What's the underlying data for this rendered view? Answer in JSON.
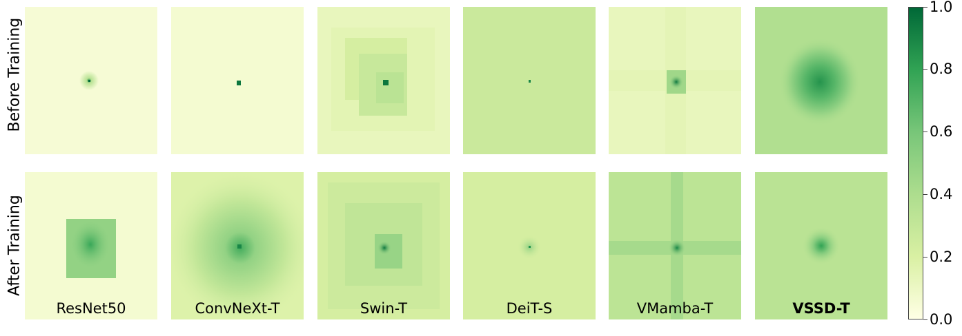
{
  "chart_data": {
    "type": "heatmap",
    "rows": [
      "Before Training",
      "After Training"
    ],
    "columns": [
      "ResNet50",
      "ConvNeXt-T",
      "Swin-T",
      "DeiT-S",
      "VMamba-T",
      "VSSD-T"
    ],
    "bold_columns": [
      "VSSD-T"
    ],
    "colorbar": {
      "colormap": "Greens-yellow",
      "min": 0.0,
      "max": 1.0,
      "ticks": [
        0.0,
        0.2,
        0.4,
        0.6,
        0.8,
        1.0
      ],
      "tick_labels": [
        "0.0",
        "0.2",
        "0.4",
        "0.6",
        "0.8",
        "1.0"
      ]
    },
    "background_level": [
      [
        0.05,
        0.06,
        0.12,
        0.27,
        0.12,
        0.38
      ],
      [
        0.06,
        0.18,
        0.22,
        0.22,
        0.33,
        0.34
      ]
    ],
    "colors": {
      "low": "#ffffe5",
      "mid": "#addd8e",
      "high": "#006837"
    }
  }
}
